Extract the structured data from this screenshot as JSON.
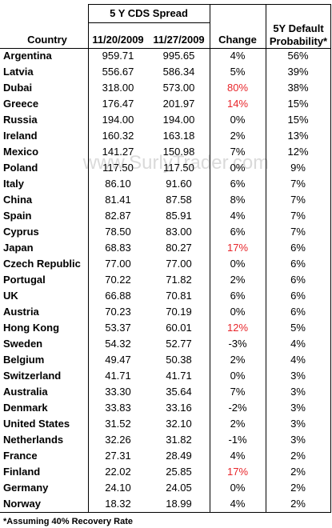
{
  "header": {
    "group": "5 Y CDS Spread",
    "columns": [
      "Country",
      "11/20/2009",
      "11/27/2009",
      "Change",
      "5Y Default Probability*"
    ]
  },
  "rows": [
    {
      "cells": [
        "Argentina",
        "959.71",
        "995.65",
        "4%",
        "56%"
      ]
    },
    {
      "cells": [
        "Latvia",
        "556.67",
        "586.34",
        "5%",
        "39%"
      ]
    },
    {
      "cells": [
        "Dubai",
        "318.00",
        "573.00",
        "80%",
        "38%"
      ],
      "change_color": "#e8262b"
    },
    {
      "cells": [
        "Greece",
        "176.47",
        "201.97",
        "14%",
        "15%"
      ],
      "change_color": "#e8262b"
    },
    {
      "cells": [
        "Russia",
        "194.00",
        "194.00",
        "0%",
        "15%"
      ]
    },
    {
      "cells": [
        "Ireland",
        "160.32",
        "163.18",
        "2%",
        "13%"
      ]
    },
    {
      "cells": [
        "Mexico",
        "141.27",
        "150.98",
        "7%",
        "12%"
      ]
    },
    {
      "cells": [
        "Poland",
        "117.50",
        "117.50",
        "0%",
        "9%"
      ]
    },
    {
      "cells": [
        "Italy",
        "86.10",
        "91.60",
        "6%",
        "7%"
      ]
    },
    {
      "cells": [
        "China",
        "81.41",
        "87.58",
        "8%",
        "7%"
      ]
    },
    {
      "cells": [
        "Spain",
        "82.87",
        "85.91",
        "4%",
        "7%"
      ]
    },
    {
      "cells": [
        "Cyprus",
        "78.50",
        "83.00",
        "6%",
        "7%"
      ]
    },
    {
      "cells": [
        "Japan",
        "68.83",
        "80.27",
        "17%",
        "6%"
      ],
      "change_color": "#e8262b"
    },
    {
      "cells": [
        "Czech Republic",
        "77.00",
        "77.00",
        "0%",
        "6%"
      ]
    },
    {
      "cells": [
        "Portugal",
        "70.22",
        "71.82",
        "2%",
        "6%"
      ]
    },
    {
      "cells": [
        "UK",
        "66.88",
        "70.81",
        "6%",
        "6%"
      ]
    },
    {
      "cells": [
        "Austria",
        "70.23",
        "70.19",
        "0%",
        "6%"
      ]
    },
    {
      "cells": [
        "Hong Kong",
        "53.37",
        "60.01",
        "12%",
        "5%"
      ],
      "change_color": "#e8262b"
    },
    {
      "cells": [
        "Sweden",
        "54.32",
        "52.77",
        "-3%",
        "4%"
      ]
    },
    {
      "cells": [
        "Belgium",
        "49.47",
        "50.38",
        "2%",
        "4%"
      ]
    },
    {
      "cells": [
        "Switzerland",
        "41.71",
        "41.71",
        "0%",
        "3%"
      ]
    },
    {
      "cells": [
        "Australia",
        "33.30",
        "35.64",
        "7%",
        "3%"
      ]
    },
    {
      "cells": [
        "Denmark",
        "33.83",
        "33.16",
        "-2%",
        "3%"
      ]
    },
    {
      "cells": [
        "United States",
        "31.52",
        "32.10",
        "2%",
        "3%"
      ]
    },
    {
      "cells": [
        "Netherlands",
        "32.26",
        "31.82",
        "-1%",
        "3%"
      ]
    },
    {
      "cells": [
        "France",
        "27.31",
        "28.49",
        "4%",
        "2%"
      ]
    },
    {
      "cells": [
        "Finland",
        "22.02",
        "25.85",
        "17%",
        "2%"
      ],
      "change_color": "#e8262b"
    },
    {
      "cells": [
        "Germany",
        "24.10",
        "24.05",
        "0%",
        "2%"
      ]
    },
    {
      "cells": [
        "Norway",
        "18.32",
        "18.99",
        "4%",
        "2%"
      ]
    }
  ],
  "footnote": "*Assuming 40% Recovery Rate",
  "watermark": "www.SurlyTrader.com"
}
